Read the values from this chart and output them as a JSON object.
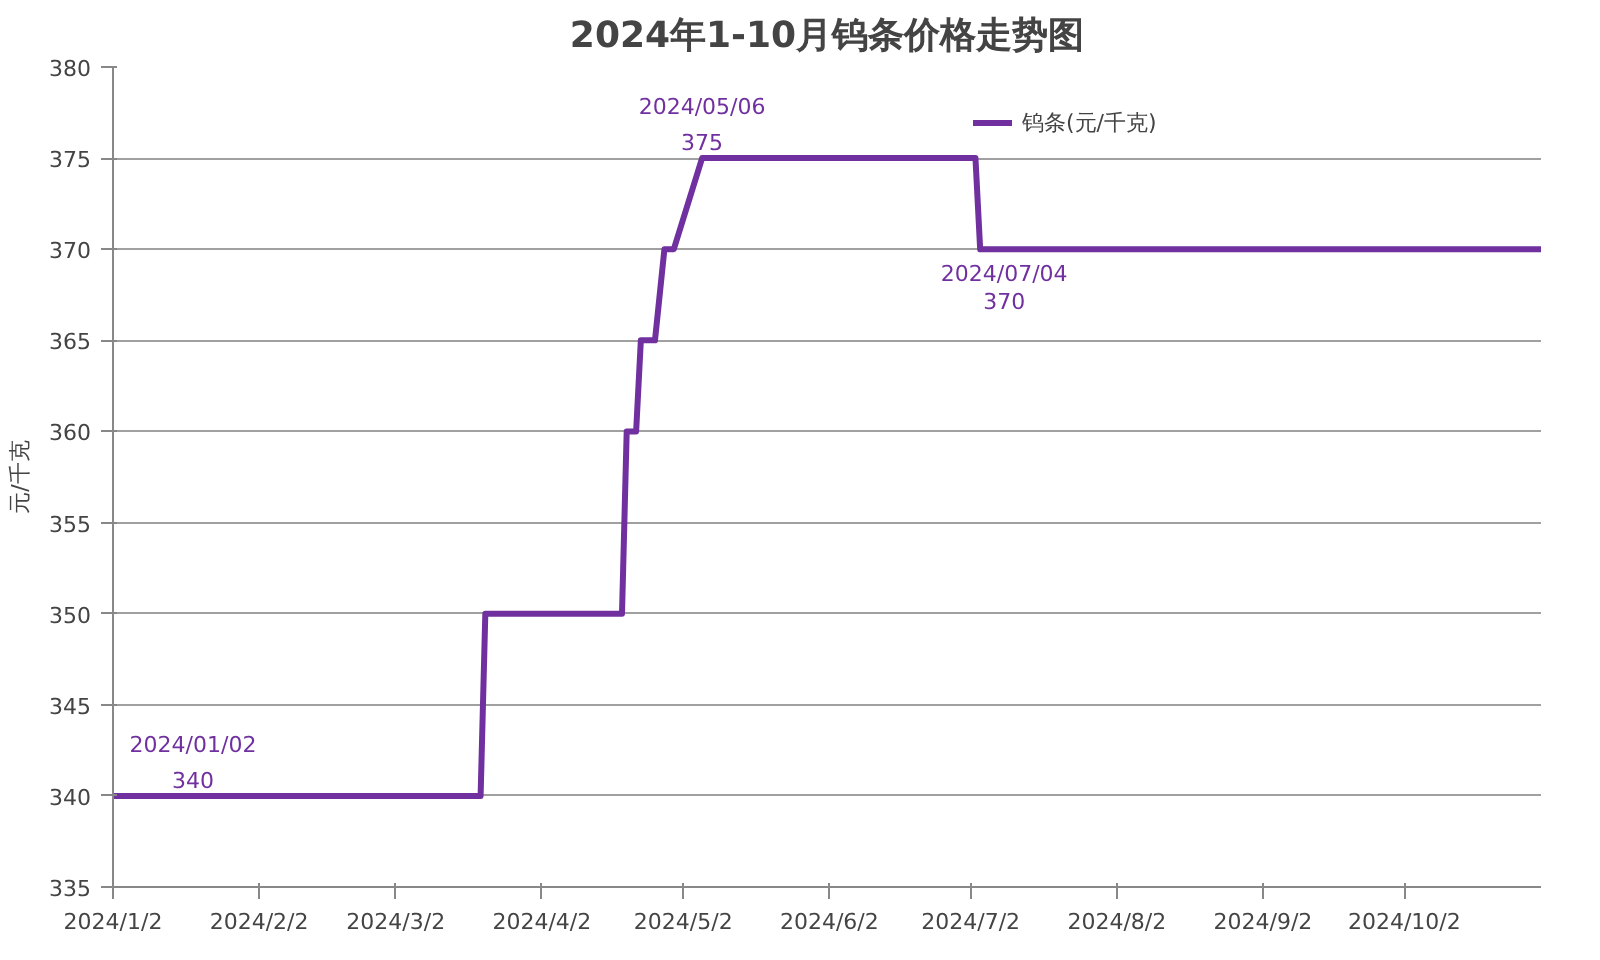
{
  "chart_data": {
    "type": "line",
    "title": "2024年1-10月钨条价格走势图",
    "ylabel": "元/千克",
    "legend": "top",
    "grid": "y",
    "marker": "none",
    "line_style": "solid",
    "x": [
      "2024-01-02",
      "2024-03-20",
      "2024-03-21",
      "2024-04-19",
      "2024-04-20",
      "2024-04-22",
      "2024-04-23",
      "2024-04-26",
      "2024-04-28",
      "2024-04-30",
      "2024-05-06",
      "2024-07-03",
      "2024-07-04",
      "2024-10-31"
    ],
    "series": [
      {
        "name": "钨条(元/千克)",
        "color": "#7030a0",
        "values": [
          340,
          340,
          350,
          350,
          360,
          360,
          365,
          365,
          370,
          370,
          375,
          375,
          370,
          370
        ]
      }
    ],
    "xlim": [
      "2024-01-02",
      "2024-10-31"
    ],
    "xticks": [
      {
        "value": "2024-01-02",
        "label": "2024/1/2"
      },
      {
        "value": "2024-02-02",
        "label": "2024/2/2"
      },
      {
        "value": "2024-03-02",
        "label": "2024/3/2"
      },
      {
        "value": "2024-04-02",
        "label": "2024/4/2"
      },
      {
        "value": "2024-05-02",
        "label": "2024/5/2"
      },
      {
        "value": "2024-06-02",
        "label": "2024/6/2"
      },
      {
        "value": "2024-07-02",
        "label": "2024/7/2"
      },
      {
        "value": "2024-08-02",
        "label": "2024/8/2"
      },
      {
        "value": "2024-09-02",
        "label": "2024/9/2"
      },
      {
        "value": "2024-10-02",
        "label": "2024/10/2"
      }
    ],
    "ylim": [
      335,
      380
    ],
    "yticks": [
      335,
      340,
      345,
      350,
      355,
      360,
      365,
      370,
      375,
      380
    ],
    "annotations": [
      {
        "text": "2024/01/02\n340",
        "x": "2024-01-02",
        "y": 340
      },
      {
        "text": "2024/05/06\n375",
        "x": "2024-05-06",
        "y": 375
      },
      {
        "text": "2024/07/04\n370",
        "x": "2024-07-04",
        "y": 370
      }
    ]
  }
}
